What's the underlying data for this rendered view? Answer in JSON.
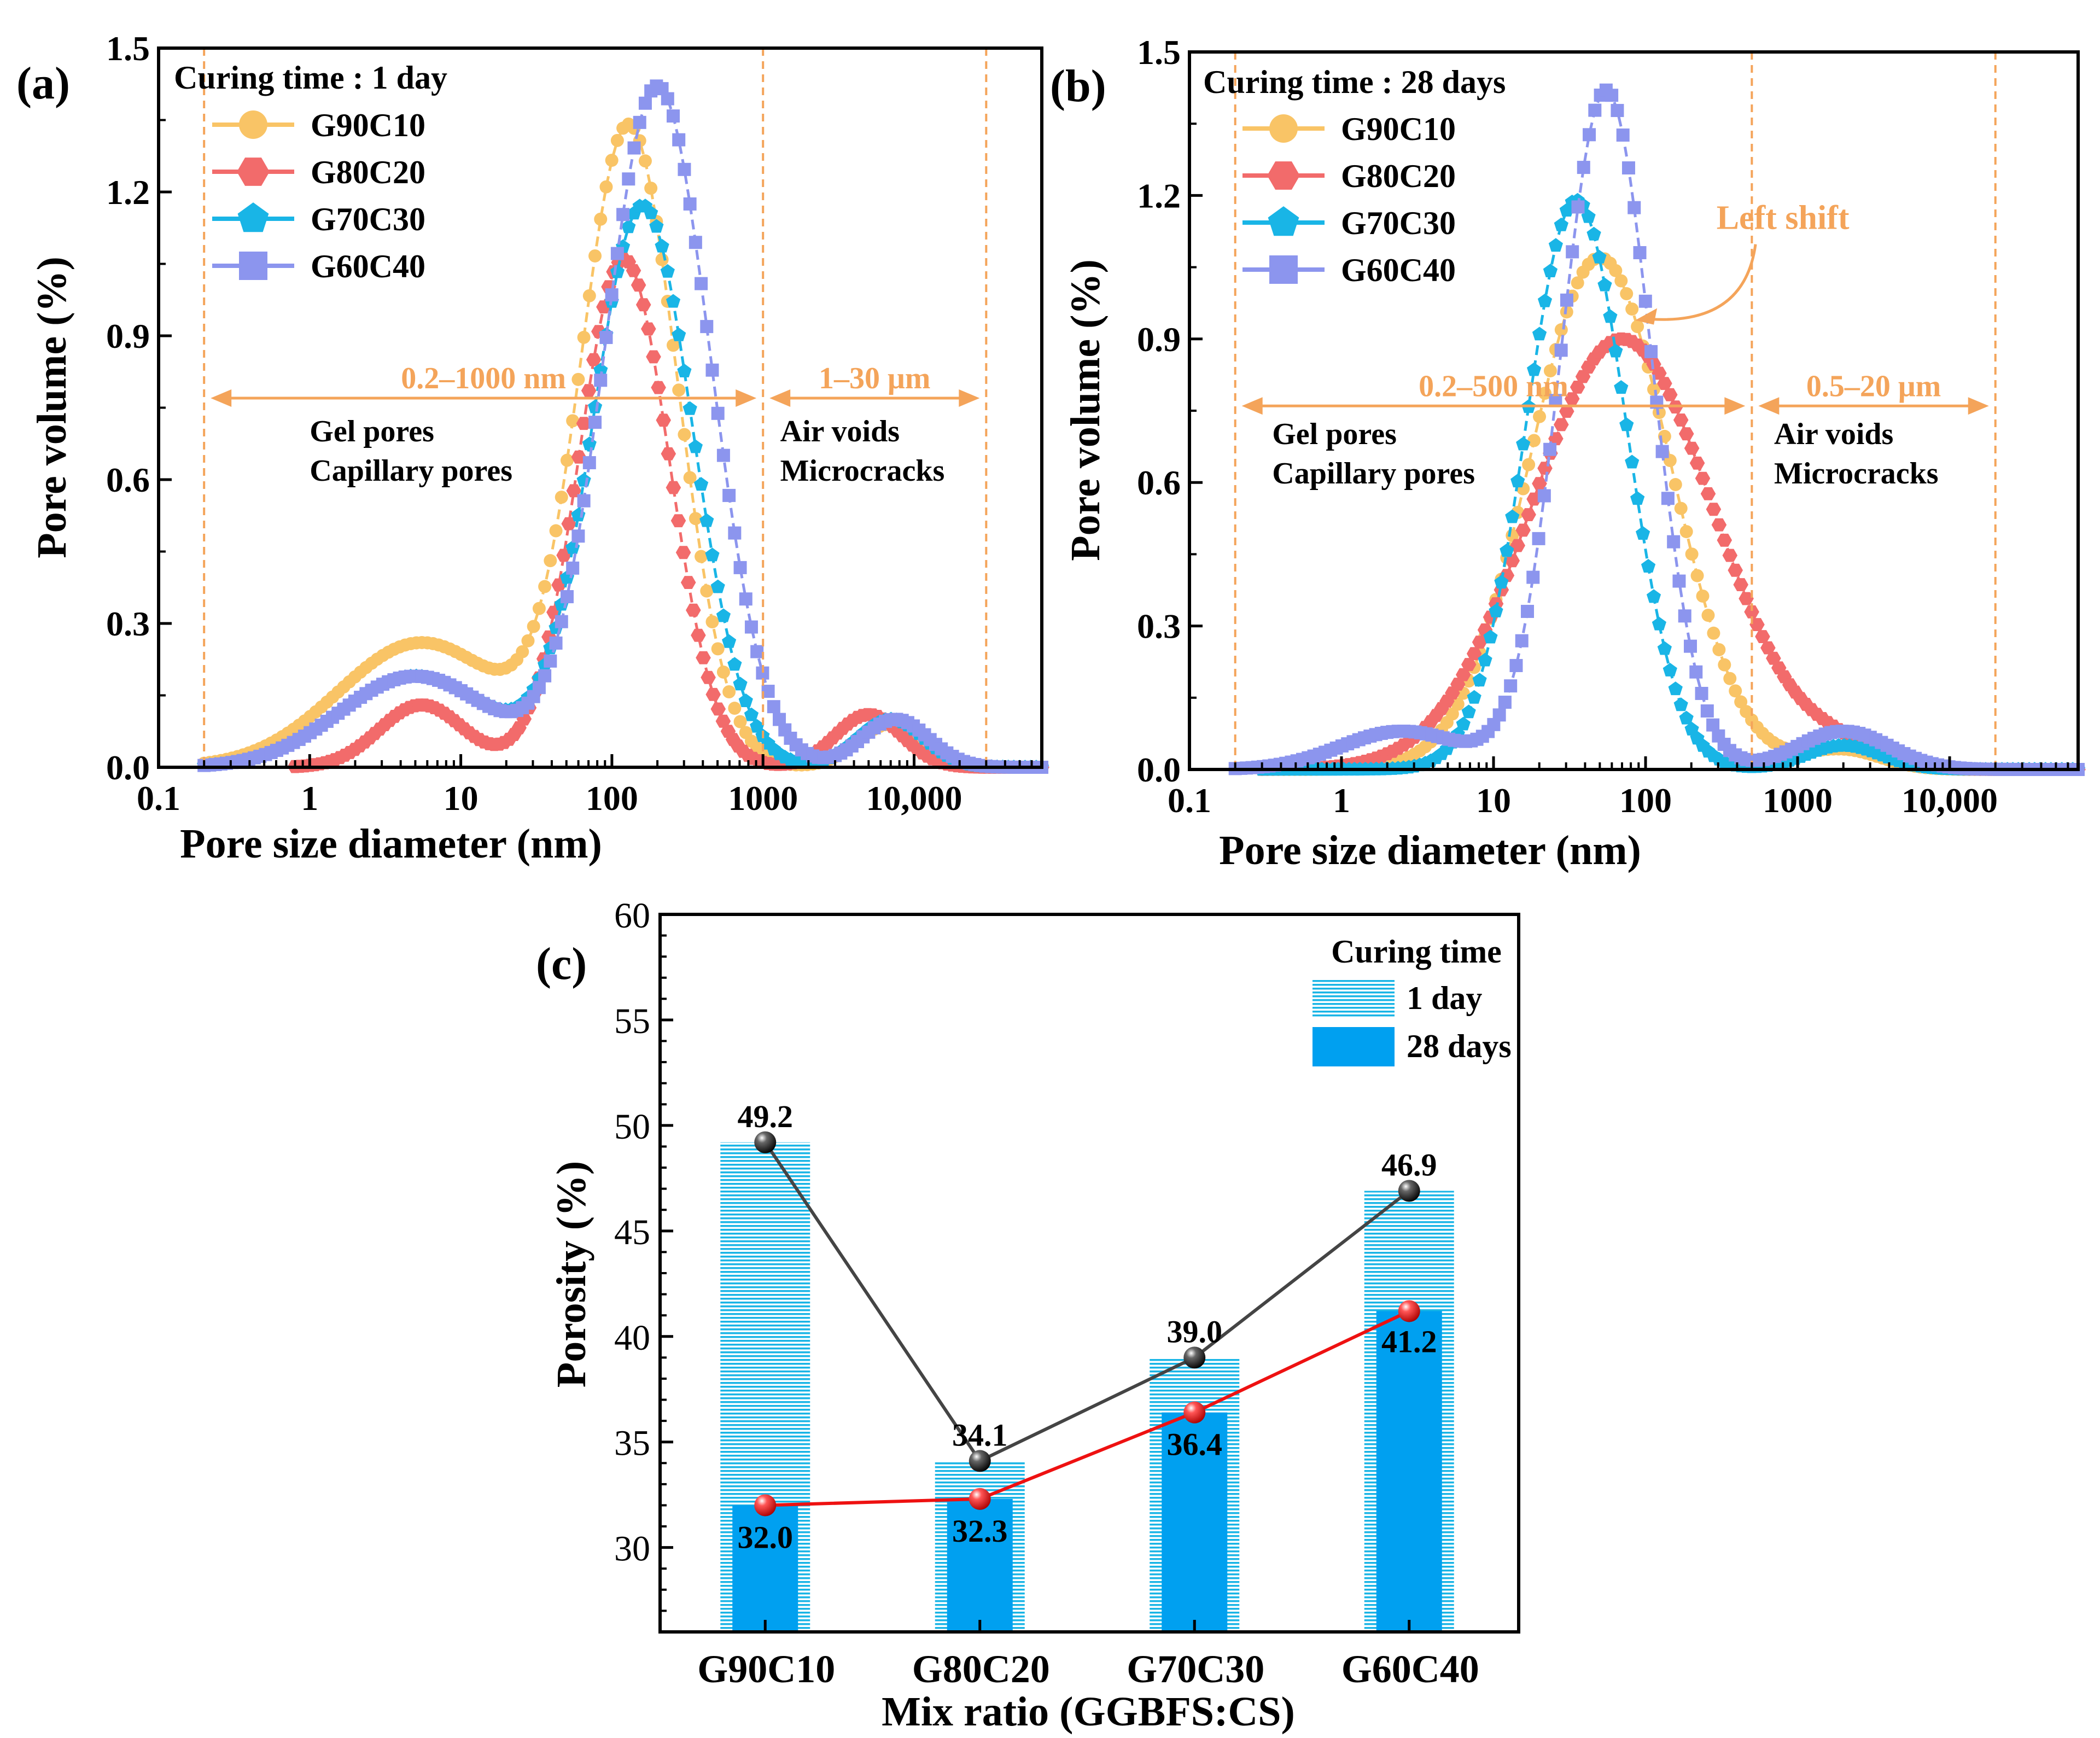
{
  "colors": {
    "G90C10": "#F9C466",
    "G80C20": "#F26B6B",
    "G70C30": "#19B5E6",
    "G60C40": "#8C95EE",
    "annotation": "#F4A45A",
    "bar": "#00A0F0",
    "line1": "#444444",
    "line28": "#EE1111"
  },
  "chart_data": [
    {
      "id": "a",
      "panel_label": "(a)",
      "type": "scatter",
      "xscale": "log",
      "xlim": [
        0.1,
        70000
      ],
      "ylim": [
        0,
        1.5
      ],
      "xlabel": "Pore size diameter (nm)",
      "ylabel": "Pore volume (%)",
      "xticks": [
        {
          "v": 0.1,
          "label": "0.1"
        },
        {
          "v": 1,
          "label": "1"
        },
        {
          "v": 10,
          "label": "10"
        },
        {
          "v": 100,
          "label": "100"
        },
        {
          "v": 1000,
          "label": "1000"
        },
        {
          "v": 10000,
          "label": "10,000"
        }
      ],
      "yticks": [
        {
          "v": 0,
          "label": "0.0"
        },
        {
          "v": 0.3,
          "label": "0.3"
        },
        {
          "v": 0.6,
          "label": "0.6"
        },
        {
          "v": 0.9,
          "label": "0.9"
        },
        {
          "v": 1.2,
          "label": "1.2"
        },
        {
          "v": 1.5,
          "label": "1.5"
        }
      ],
      "legend_title": "Curing time : 1 day",
      "legend_position": "top-left",
      "series": [
        {
          "name": "G90C10",
          "marker": "circle",
          "start": 0.2,
          "end": 80000,
          "peaks": [
            {
              "c": 5.5,
              "h": 0.26,
              "w": 0.55
            },
            {
              "c": 130,
              "h": 1.33,
              "w": 0.32
            },
            {
              "c": 7000,
              "h": 0.09,
              "w": 0.22
            }
          ]
        },
        {
          "name": "G80C20",
          "marker": "hexagon",
          "start": 0.8,
          "end": 80000,
          "peaks": [
            {
              "c": 5.5,
              "h": 0.13,
              "w": 0.28
            },
            {
              "c": 120,
              "h": 1.06,
              "w": 0.3
            },
            {
              "c": 5000,
              "h": 0.11,
              "w": 0.22
            }
          ]
        },
        {
          "name": "G70C30",
          "marker": "pentagon",
          "start": 0.2,
          "end": 80000,
          "peaks": [
            {
              "c": 5,
              "h": 0.19,
              "w": 0.5
            },
            {
              "c": 160,
              "h": 1.17,
              "w": 0.33
            },
            {
              "c": 7000,
              "h": 0.1,
              "w": 0.22
            }
          ]
        },
        {
          "name": "G60C40",
          "marker": "square",
          "start": 0.2,
          "end": 80000,
          "peaks": [
            {
              "c": 5,
              "h": 0.19,
              "w": 0.5
            },
            {
              "c": 200,
              "h": 1.42,
              "w": 0.35
            },
            {
              "c": 7500,
              "h": 0.1,
              "w": 0.22
            }
          ]
        }
      ],
      "vlines": [
        0.2,
        1000,
        30000
      ],
      "ranges": [
        {
          "from": 0.2,
          "to": 1000,
          "y": 0.77,
          "label": "0.2–1000 nm"
        },
        {
          "from": 1000,
          "to": 30000,
          "y": 0.77,
          "label": "1–30 μm"
        }
      ],
      "region_labels": [
        {
          "x": 1.0,
          "y": 0.68,
          "line1": "Gel pores",
          "line2": "Capillary pores"
        },
        {
          "x": 1300,
          "y": 0.68,
          "line1": "Air voids",
          "line2": "Microcracks"
        }
      ]
    },
    {
      "id": "b",
      "panel_label": "(b)",
      "type": "scatter",
      "xscale": "log",
      "xlim": [
        0.1,
        70000
      ],
      "ylim": [
        0,
        1.5
      ],
      "xlabel": "Pore size diameter (nm)",
      "ylabel": "Pore volume (%)",
      "xticks": [
        {
          "v": 0.1,
          "label": "0.1"
        },
        {
          "v": 1,
          "label": "1"
        },
        {
          "v": 10,
          "label": "10"
        },
        {
          "v": 100,
          "label": "100"
        },
        {
          "v": 1000,
          "label": "1000"
        },
        {
          "v": 10000,
          "label": "10,000"
        }
      ],
      "yticks": [
        {
          "v": 0,
          "label": "0.0"
        },
        {
          "v": 0.3,
          "label": "0.3"
        },
        {
          "v": 0.6,
          "label": "0.6"
        },
        {
          "v": 0.9,
          "label": "0.9"
        },
        {
          "v": 1.2,
          "label": "1.2"
        },
        {
          "v": 1.5,
          "label": "1.5"
        }
      ],
      "legend_title": "Curing time : 28 days",
      "legend_position": "top-left",
      "annotation": {
        "label": "Left shift",
        "x": 800,
        "y": 1.13
      },
      "series": [
        {
          "name": "G90C10",
          "marker": "circle",
          "start": 0.3,
          "end": 80000,
          "peaks": [
            {
              "c": 50,
              "h": 1.07,
              "w": 0.46
            },
            {
              "c": 2000,
              "h": 0.04,
              "w": 0.25
            }
          ]
        },
        {
          "name": "G80C20",
          "marker": "hexagon",
          "start": 0.3,
          "end": 80000,
          "peaks": [
            {
              "c": 70,
              "h": 0.9,
              "w": 0.6
            },
            {
              "c": 2000,
              "h": 0.03,
              "w": 0.25
            }
          ]
        },
        {
          "name": "G70C30",
          "marker": "pentagon",
          "start": 0.3,
          "end": 80000,
          "peaks": [
            {
              "c": 35,
              "h": 1.19,
              "w": 0.33
            },
            {
              "c": 2000,
              "h": 0.05,
              "w": 0.25
            }
          ]
        },
        {
          "name": "G60C40",
          "marker": "square",
          "start": 0.2,
          "end": 80000,
          "peaks": [
            {
              "c": 2.5,
              "h": 0.08,
              "w": 0.4
            },
            {
              "c": 55,
              "h": 1.42,
              "w": 0.3
            },
            {
              "c": 2000,
              "h": 0.08,
              "w": 0.3
            }
          ]
        }
      ],
      "vlines": [
        0.2,
        500,
        20000
      ],
      "ranges": [
        {
          "from": 0.2,
          "to": 500,
          "y": 0.76,
          "label": "0.2–500 nm"
        },
        {
          "from": 500,
          "to": 20000,
          "y": 0.76,
          "label": "0.5–20 μm"
        }
      ],
      "region_labels": [
        {
          "x": 0.35,
          "y": 0.68,
          "line1": "Gel pores",
          "line2": "Capillary pores"
        },
        {
          "x": 700,
          "y": 0.68,
          "line1": "Air voids",
          "line2": "Microcracks"
        }
      ]
    },
    {
      "id": "c",
      "panel_label": "(c)",
      "type": "bar",
      "categories": [
        "G90C10",
        "G80C20",
        "G70C30",
        "G60C40"
      ],
      "ylim": [
        26,
        60
      ],
      "yticks": [
        30,
        35,
        40,
        45,
        50,
        55,
        60
      ],
      "xlabel": "Mix ratio (GGBFS:CS)",
      "ylabel": "Porosity (%)",
      "legend_title": "Curing time",
      "legend_position": "top-right",
      "series": [
        {
          "name": "1 day",
          "style": "hatched",
          "values": [
            49.2,
            34.1,
            39.0,
            46.9
          ],
          "labels": [
            "49.2",
            "34.1",
            "39.0",
            "46.9"
          ]
        },
        {
          "name": "28 days",
          "style": "solid",
          "values": [
            32.0,
            32.3,
            36.4,
            41.2
          ],
          "labels": [
            "32.0",
            "32.3",
            "36.4",
            "41.2"
          ]
        }
      ]
    }
  ]
}
